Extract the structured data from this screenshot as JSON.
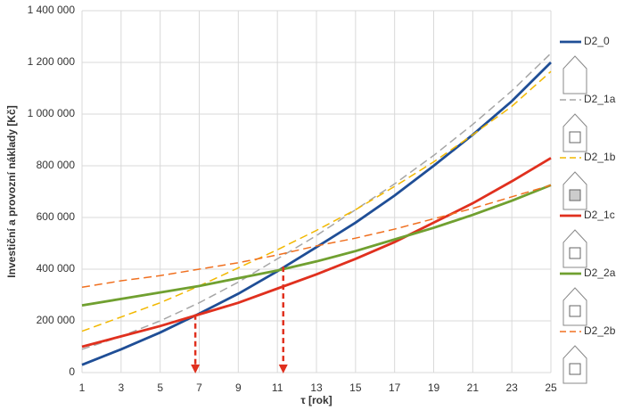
{
  "chart_data": {
    "type": "line",
    "y_label": "Investiční a provozní náklady [Kč]",
    "x_label": "τ [rok]",
    "x": [
      1,
      3,
      5,
      7,
      9,
      11,
      13,
      15,
      17,
      19,
      21,
      23,
      25
    ],
    "xlim": [
      1,
      25
    ],
    "xticks": [
      1,
      3,
      5,
      7,
      9,
      11,
      13,
      15,
      17,
      19,
      21,
      23,
      25
    ],
    "ylim": [
      0,
      1400000
    ],
    "yticks": [
      0,
      {
        "value": 200000,
        "label": "200 000"
      },
      {
        "value": 400000,
        "label": "400 000"
      },
      {
        "value": 600000,
        "label": "600 000"
      },
      {
        "value": 800000,
        "label": "800 000"
      },
      {
        "value": 1000000,
        "label": "1 000 000"
      },
      {
        "value": 1200000,
        "label": "1 200 000"
      },
      {
        "value": 1400000,
        "label": "1 400 000"
      }
    ],
    "grid": true,
    "legend": "right",
    "series": [
      {
        "name": "D2_0",
        "color": "#1f4e96",
        "dashed": false,
        "values": [
          30000,
          90000,
          155000,
          228000,
          305000,
          392000,
          485000,
          580000,
          685000,
          800000,
          920000,
          1050000,
          1200000
        ]
      },
      {
        "name": "D2_1a",
        "color": "#a6a6a6",
        "dashed": true,
        "values": [
          90000,
          140000,
          200000,
          270000,
          350000,
          440000,
          530000,
          630000,
          730000,
          840000,
          960000,
          1090000,
          1235000
        ]
      },
      {
        "name": "D2_1b",
        "color": "#f2b800",
        "dashed": true,
        "values": [
          160000,
          215000,
          270000,
          335000,
          405000,
          475000,
          550000,
          630000,
          720000,
          815000,
          920000,
          1030000,
          1165000
        ]
      },
      {
        "name": "D2_1c",
        "color": "#e0301e",
        "dashed": false,
        "values": [
          100000,
          140000,
          180000,
          225000,
          270000,
          325000,
          380000,
          440000,
          505000,
          580000,
          655000,
          740000,
          830000
        ]
      },
      {
        "name": "D2_2a",
        "color": "#70a030",
        "dashed": false,
        "values": [
          260000,
          285000,
          310000,
          335000,
          365000,
          395000,
          430000,
          470000,
          515000,
          560000,
          610000,
          665000,
          725000
        ]
      },
      {
        "name": "D2_2b",
        "color": "#f07020",
        "dashed": true,
        "values": [
          330000,
          355000,
          375000,
          400000,
          425000,
          455000,
          490000,
          520000,
          555000,
          595000,
          635000,
          680000,
          725000
        ]
      }
    ],
    "markers": [
      {
        "x": 6.8,
        "y": 225000,
        "color": "#e0301e"
      },
      {
        "x": 11.3,
        "y": 410000,
        "color": "#e0301e"
      }
    ]
  }
}
